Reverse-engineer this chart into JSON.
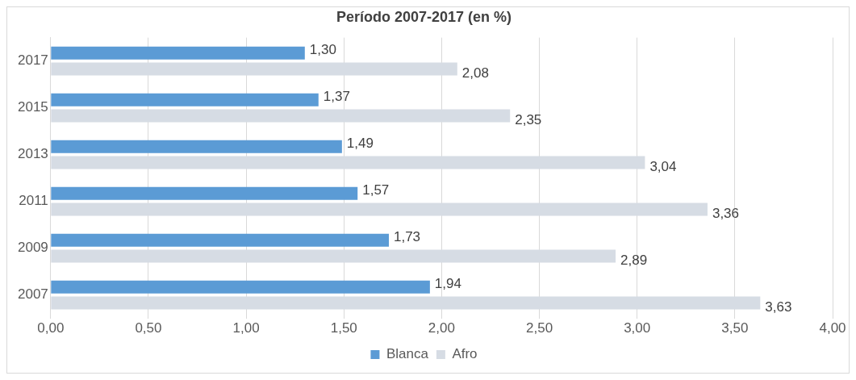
{
  "chart_data": {
    "type": "bar",
    "orientation": "horizontal",
    "title": "Período 2007-2017 (en %)",
    "categories": [
      "2017",
      "2015",
      "2013",
      "2011",
      "2009",
      "2007"
    ],
    "series": [
      {
        "name": "Blanca",
        "color": "#5b9bd5",
        "values": [
          1.3,
          1.37,
          1.49,
          1.57,
          1.73,
          1.94
        ],
        "value_labels": [
          "1,30",
          "1,37",
          "1,49",
          "1,57",
          "1,73",
          "1,94"
        ]
      },
      {
        "name": "Afro",
        "color": "#d6dce4",
        "values": [
          2.08,
          2.35,
          3.04,
          3.36,
          2.89,
          3.63
        ],
        "value_labels": [
          "2,08",
          "2,35",
          "3,04",
          "3,36",
          "2,89",
          "3,63"
        ]
      }
    ],
    "xlim": [
      0,
      4
    ],
    "xticks": [
      {
        "value": 0,
        "label": "0,00"
      },
      {
        "value": 0.5,
        "label": "0,50"
      },
      {
        "value": 1,
        "label": "1,00"
      },
      {
        "value": 1.5,
        "label": "1,50"
      },
      {
        "value": 2,
        "label": "2,00"
      },
      {
        "value": 2.5,
        "label": "2,50"
      },
      {
        "value": 3,
        "label": "3,00"
      },
      {
        "value": 3.5,
        "label": "3,50"
      },
      {
        "value": 4,
        "label": "4,00"
      }
    ],
    "grid": "x",
    "legend": "bottom"
  }
}
